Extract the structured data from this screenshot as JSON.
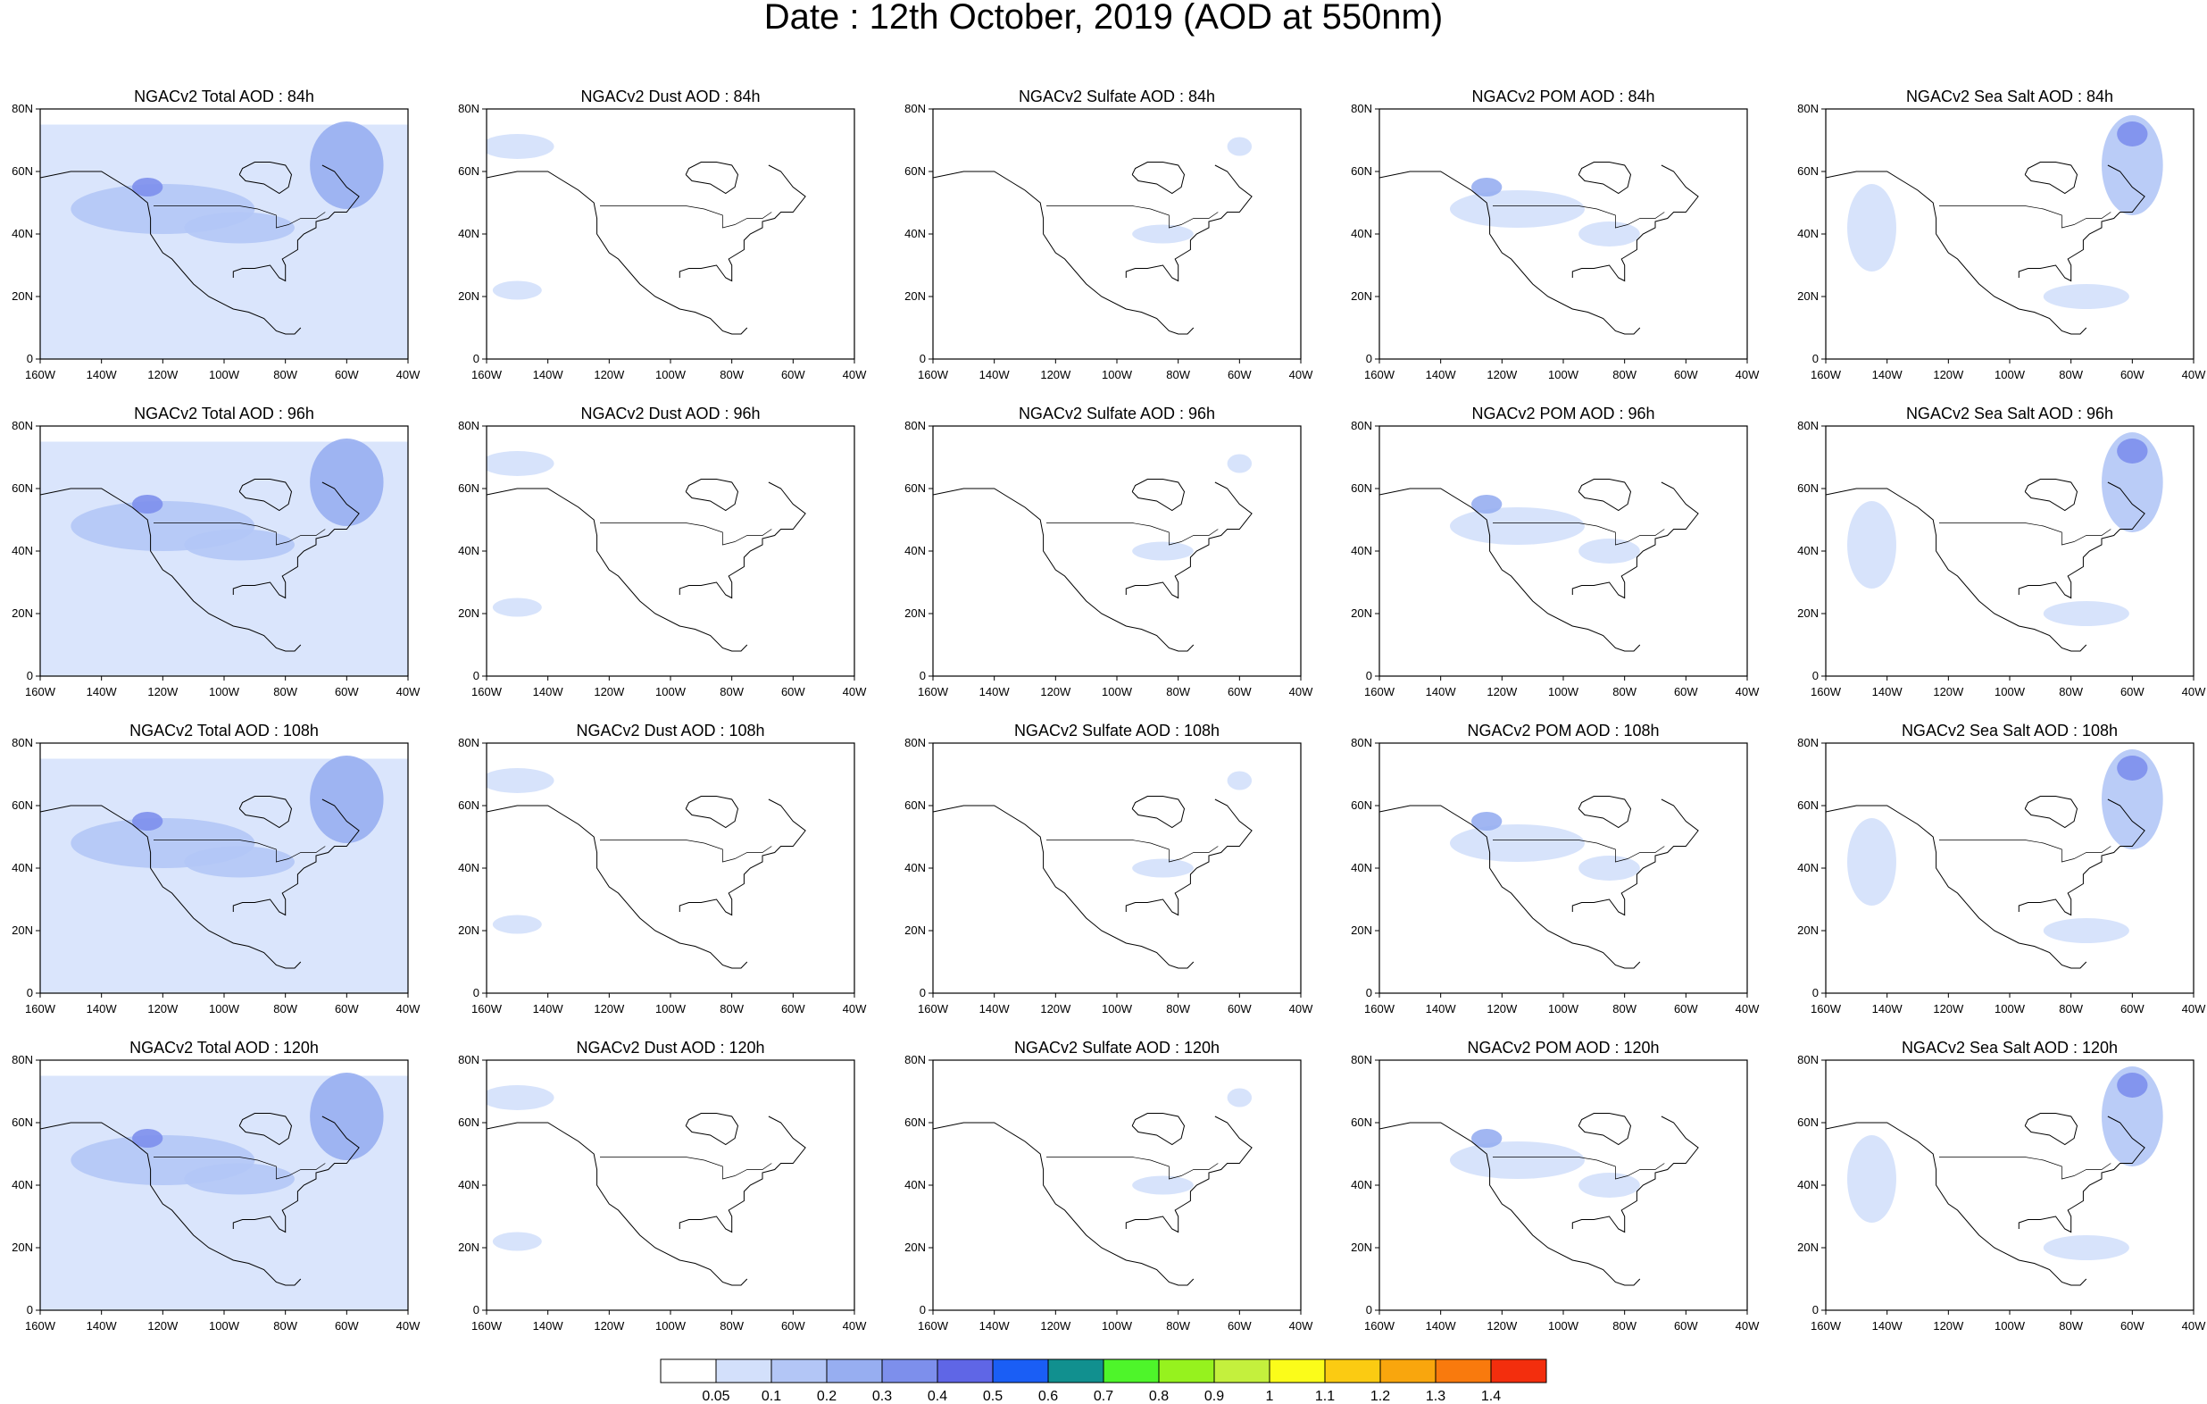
{
  "figure": {
    "title": "Date : 12th October, 2019 (AOD at 550nm)"
  },
  "axes": {
    "x_ticks": [
      "160W",
      "140W",
      "120W",
      "100W",
      "80W",
      "60W",
      "40W"
    ],
    "y_ticks": [
      "0",
      "20N",
      "40N",
      "60N",
      "80N"
    ],
    "xlim": [
      -160,
      -40
    ],
    "ylim": [
      0,
      80
    ]
  },
  "colorbar": {
    "colors": [
      "#ffffff",
      "#d3e0fb",
      "#b3c6f6",
      "#97aef1",
      "#7d8fec",
      "#5f66e6",
      "#1a5ef5",
      "#11908f",
      "#4ef52a",
      "#96f21e",
      "#c4f03d",
      "#fbfc1a",
      "#fbcb12",
      "#f9a60d",
      "#f97a0d",
      "#f32e0d"
    ],
    "labels": [
      "0.05",
      "0.1",
      "0.2",
      "0.3",
      "0.4",
      "0.5",
      "0.6",
      "0.7",
      "0.8",
      "0.9",
      "1",
      "1.1",
      "1.2",
      "1.3",
      "1.4"
    ]
  },
  "chart_data": [
    {
      "type": "heatmap",
      "title": "NGACv2 Total AOD : 84h",
      "variable": "Total AOD",
      "forecast_hour": "84h"
    },
    {
      "type": "heatmap",
      "title": "NGACv2 Dust AOD : 84h",
      "variable": "Dust AOD",
      "forecast_hour": "84h"
    },
    {
      "type": "heatmap",
      "title": "NGACv2 Sulfate AOD : 84h",
      "variable": "Sulfate AOD",
      "forecast_hour": "84h"
    },
    {
      "type": "heatmap",
      "title": "NGACv2 POM AOD : 84h",
      "variable": "POM AOD",
      "forecast_hour": "84h"
    },
    {
      "type": "heatmap",
      "title": "NGACv2 Sea Salt AOD : 84h",
      "variable": "Sea Salt AOD",
      "forecast_hour": "84h"
    },
    {
      "type": "heatmap",
      "title": "NGACv2 Total AOD : 96h",
      "variable": "Total AOD",
      "forecast_hour": "96h"
    },
    {
      "type": "heatmap",
      "title": "NGACv2 Dust AOD : 96h",
      "variable": "Dust AOD",
      "forecast_hour": "96h"
    },
    {
      "type": "heatmap",
      "title": "NGACv2 Sulfate AOD : 96h",
      "variable": "Sulfate AOD",
      "forecast_hour": "96h"
    },
    {
      "type": "heatmap",
      "title": "NGACv2 POM AOD : 96h",
      "variable": "POM AOD",
      "forecast_hour": "96h"
    },
    {
      "type": "heatmap",
      "title": "NGACv2 Sea Salt AOD : 96h",
      "variable": "Sea Salt AOD",
      "forecast_hour": "96h"
    },
    {
      "type": "heatmap",
      "title": "NGACv2 Total AOD : 108h",
      "variable": "Total AOD",
      "forecast_hour": "108h"
    },
    {
      "type": "heatmap",
      "title": "NGACv2 Dust AOD : 108h",
      "variable": "Dust AOD",
      "forecast_hour": "108h"
    },
    {
      "type": "heatmap",
      "title": "NGACv2 Sulfate AOD : 108h",
      "variable": "Sulfate AOD",
      "forecast_hour": "108h"
    },
    {
      "type": "heatmap",
      "title": "NGACv2 POM AOD : 108h",
      "variable": "POM AOD",
      "forecast_hour": "108h"
    },
    {
      "type": "heatmap",
      "title": "NGACv2 Sea Salt AOD : 108h",
      "variable": "Sea Salt AOD",
      "forecast_hour": "108h"
    },
    {
      "type": "heatmap",
      "title": "NGACv2 Total AOD : 120h",
      "variable": "Total AOD",
      "forecast_hour": "120h"
    },
    {
      "type": "heatmap",
      "title": "NGACv2 Dust AOD : 120h",
      "variable": "Dust AOD",
      "forecast_hour": "120h"
    },
    {
      "type": "heatmap",
      "title": "NGACv2 Sulfate AOD : 120h",
      "variable": "Sulfate AOD",
      "forecast_hour": "120h"
    },
    {
      "type": "heatmap",
      "title": "NGACv2 POM AOD : 120h",
      "variable": "POM AOD",
      "forecast_hour": "120h"
    },
    {
      "type": "heatmap",
      "title": "NGACv2 Sea Salt  AOD : 120h",
      "variable": "Sea Salt AOD",
      "forecast_hour": "120h"
    }
  ]
}
